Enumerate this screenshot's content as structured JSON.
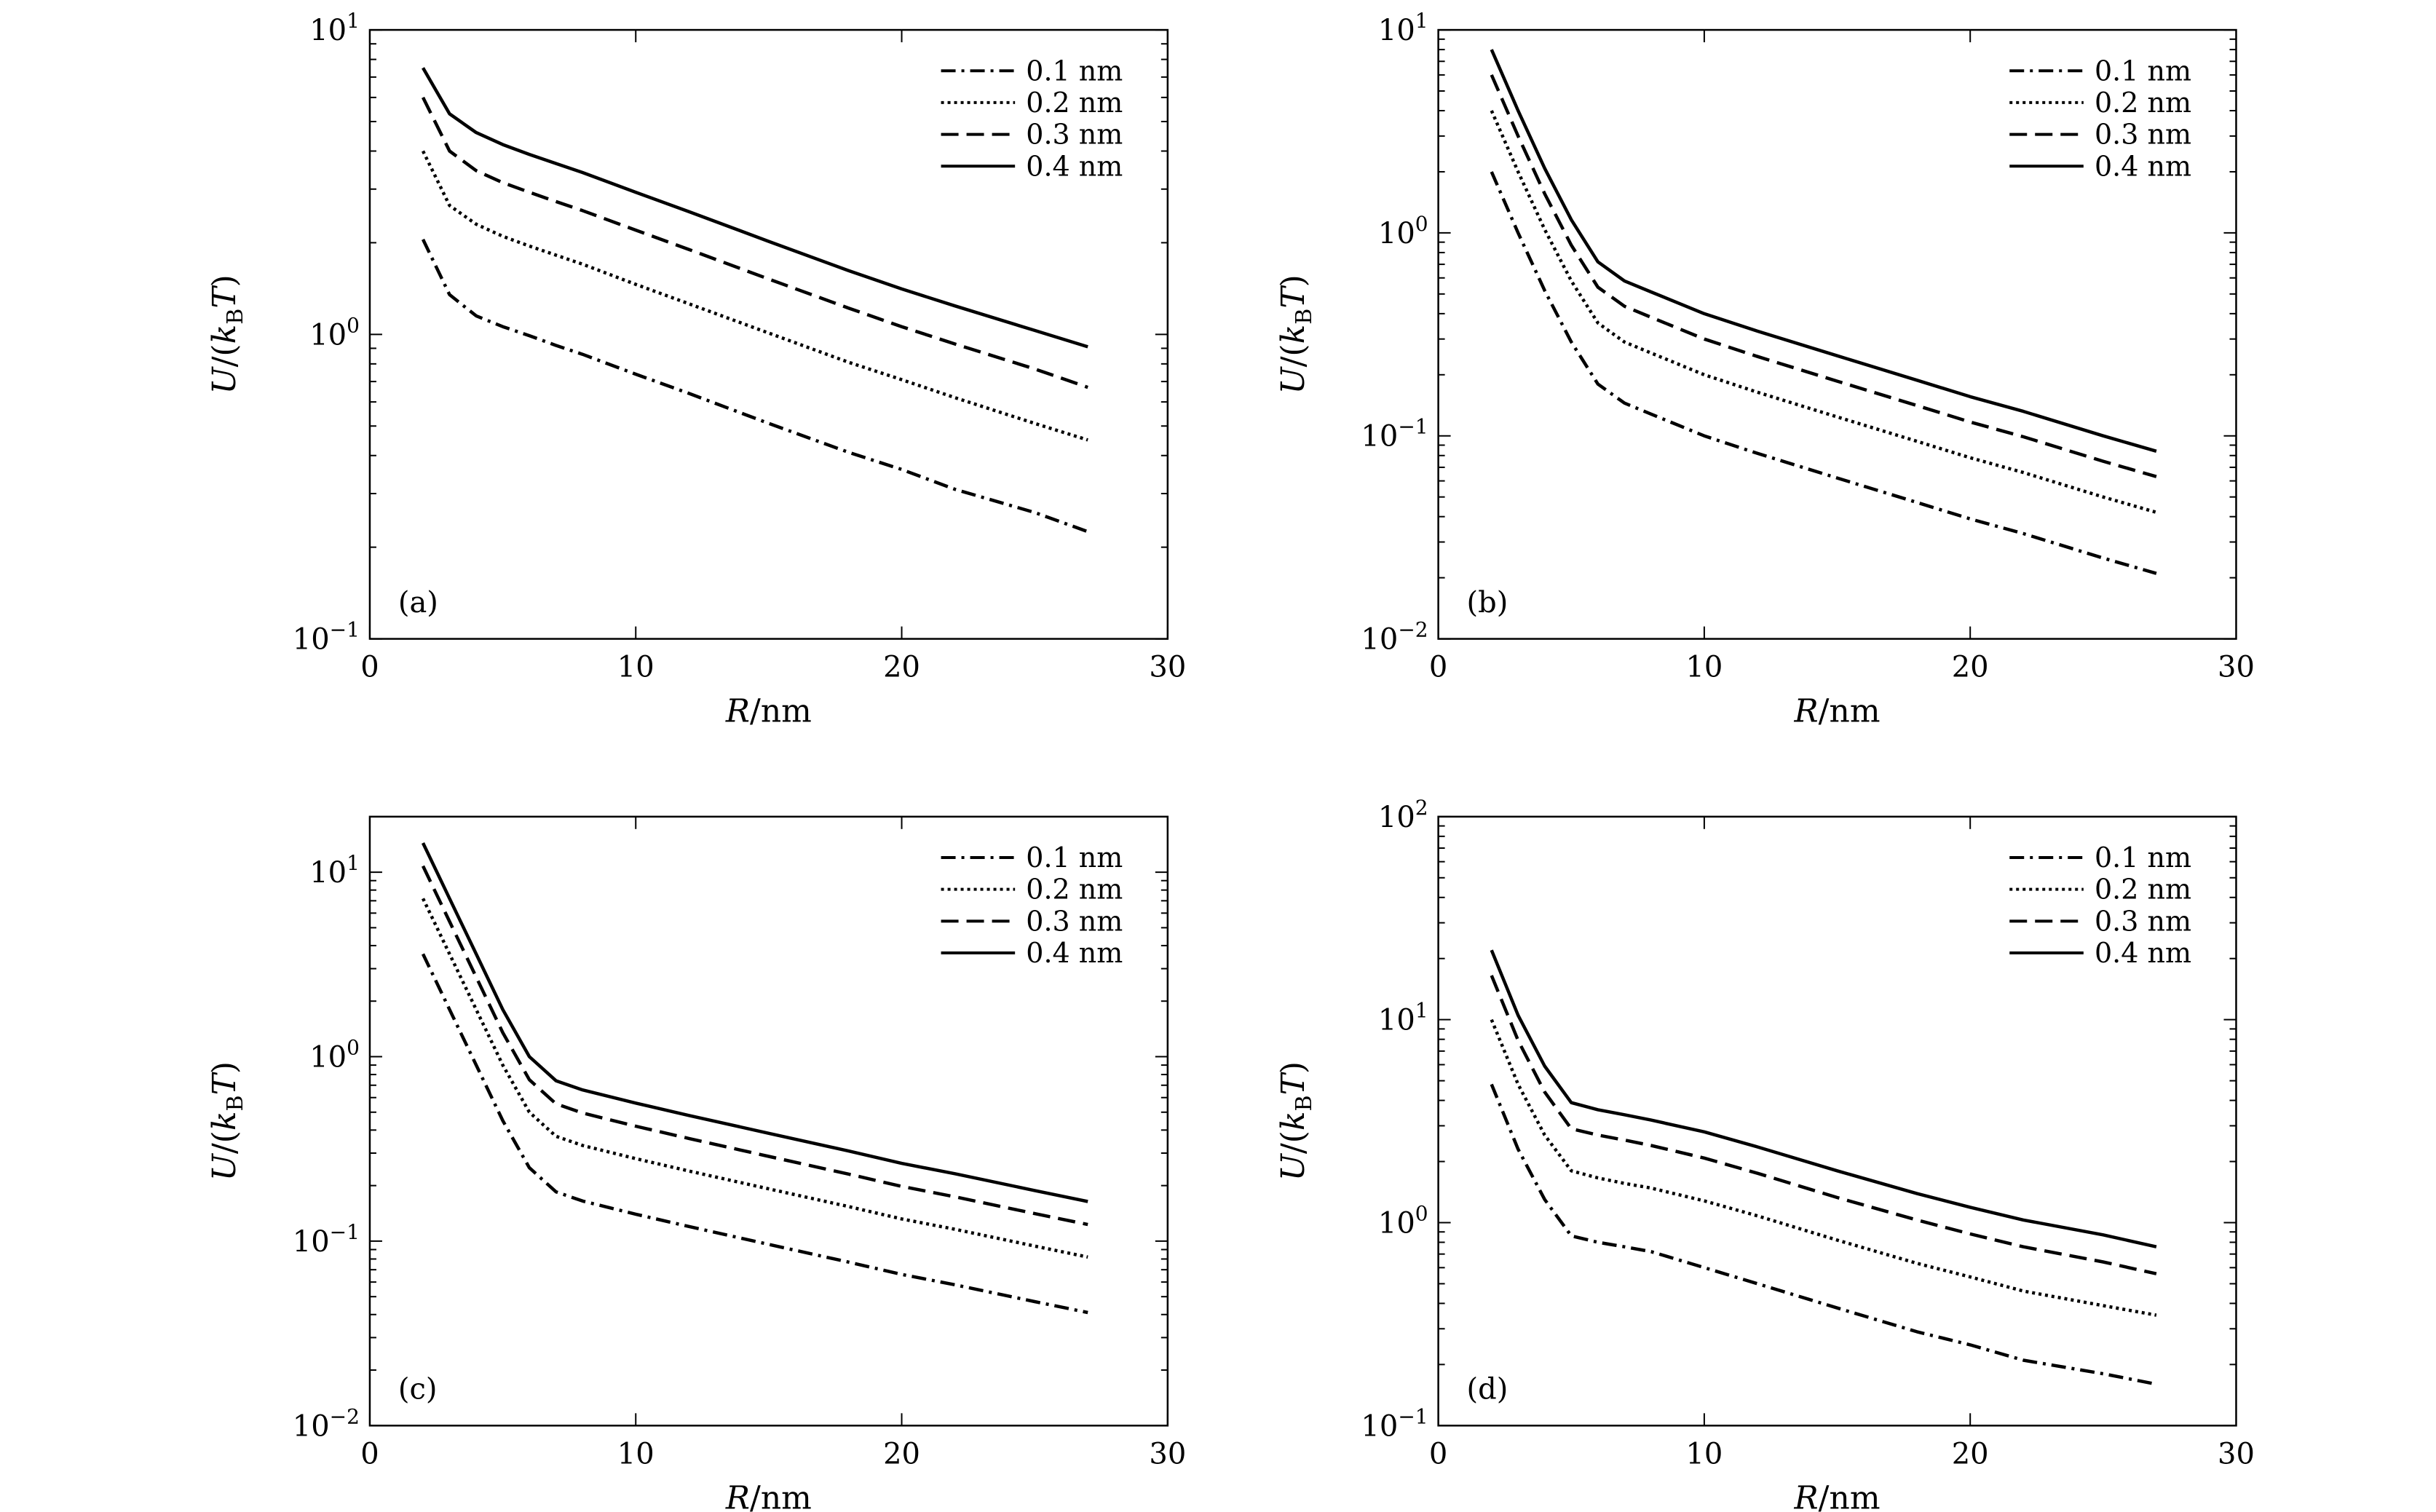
{
  "figure": {
    "ylabel": "U/(k_BT)",
    "xlabel_var": "R",
    "xlabel_unit": "/nm"
  },
  "chart_data": [
    {
      "type": "line",
      "panel": "(a)",
      "xlabel": "R/nm",
      "ylabel": "U/(kBT)",
      "xlim": [
        0,
        30
      ],
      "ylim": [
        0.1,
        10
      ],
      "yscale": "log",
      "xticks": [
        0,
        10,
        20,
        30
      ],
      "yticks": [
        {
          "base": "10",
          "exp": "−1",
          "value": 0.1
        },
        {
          "base": "10",
          "exp": "0",
          "value": 1
        },
        {
          "base": "10",
          "exp": "1",
          "value": 10
        }
      ],
      "legend_position": "top-right",
      "x": [
        2,
        3,
        4,
        5,
        6,
        7,
        8,
        10,
        12,
        15,
        18,
        20,
        22,
        25,
        27
      ],
      "series": [
        {
          "name": "0.1 nm",
          "style": "dashdot",
          "values": [
            2.05,
            1.35,
            1.15,
            1.06,
            0.99,
            0.92,
            0.86,
            0.74,
            0.64,
            0.51,
            0.41,
            0.36,
            0.31,
            0.26,
            0.225
          ]
        },
        {
          "name": "0.2 nm",
          "style": "dotted",
          "values": [
            4.0,
            2.65,
            2.3,
            2.1,
            1.95,
            1.82,
            1.7,
            1.46,
            1.26,
            1.01,
            0.81,
            0.71,
            0.62,
            0.51,
            0.45
          ]
        },
        {
          "name": "0.3 nm",
          "style": "dashed",
          "values": [
            6.0,
            4.0,
            3.45,
            3.15,
            2.93,
            2.73,
            2.55,
            2.2,
            1.9,
            1.52,
            1.22,
            1.06,
            0.93,
            0.77,
            0.67
          ]
        },
        {
          "name": "0.4 nm",
          "style": "solid",
          "values": [
            7.5,
            5.3,
            4.6,
            4.2,
            3.9,
            3.64,
            3.4,
            2.93,
            2.53,
            2.02,
            1.62,
            1.41,
            1.24,
            1.03,
            0.91
          ]
        }
      ]
    },
    {
      "type": "line",
      "panel": "(b)",
      "xlabel": "R/nm",
      "ylabel": "U/(kBT)",
      "xlim": [
        0,
        30
      ],
      "ylim": [
        0.01,
        10
      ],
      "yscale": "log",
      "xticks": [
        0,
        10,
        20,
        30
      ],
      "yticks": [
        {
          "base": "10",
          "exp": "−2",
          "value": 0.01
        },
        {
          "base": "10",
          "exp": "−1",
          "value": 0.1
        },
        {
          "base": "10",
          "exp": "0",
          "value": 1
        },
        {
          "base": "10",
          "exp": "1",
          "value": 10
        }
      ],
      "legend_position": "top-right",
      "x": [
        2,
        3,
        4,
        5,
        6,
        7,
        8,
        10,
        12,
        15,
        18,
        20,
        22,
        25,
        27
      ],
      "series": [
        {
          "name": "0.1 nm",
          "style": "dashdot",
          "values": [
            2.0,
            1.0,
            0.52,
            0.29,
            0.18,
            0.145,
            0.128,
            0.1,
            0.082,
            0.062,
            0.047,
            0.039,
            0.033,
            0.025,
            0.021
          ]
        },
        {
          "name": "0.2 nm",
          "style": "dotted",
          "values": [
            4.0,
            2.0,
            1.04,
            0.58,
            0.36,
            0.29,
            0.256,
            0.2,
            0.164,
            0.124,
            0.094,
            0.078,
            0.066,
            0.05,
            0.042
          ]
        },
        {
          "name": "0.3 nm",
          "style": "dashed",
          "values": [
            6.0,
            3.0,
            1.56,
            0.87,
            0.54,
            0.435,
            0.384,
            0.3,
            0.246,
            0.186,
            0.141,
            0.117,
            0.099,
            0.075,
            0.063
          ]
        },
        {
          "name": "0.4 nm",
          "style": "solid",
          "values": [
            8.0,
            4.0,
            2.08,
            1.16,
            0.72,
            0.58,
            0.512,
            0.4,
            0.328,
            0.248,
            0.188,
            0.156,
            0.132,
            0.1,
            0.084
          ]
        }
      ]
    },
    {
      "type": "line",
      "panel": "(c)",
      "xlabel": "R/nm",
      "ylabel": "U/(kBT)",
      "xlim": [
        0,
        30
      ],
      "ylim": [
        0.01,
        20
      ],
      "yscale": "log",
      "xticks": [
        0,
        10,
        20,
        30
      ],
      "yticks": [
        {
          "base": "10",
          "exp": "−2",
          "value": 0.01
        },
        {
          "base": "10",
          "exp": "−1",
          "value": 0.1
        },
        {
          "base": "10",
          "exp": "0",
          "value": 1
        },
        {
          "base": "10",
          "exp": "1",
          "value": 10
        }
      ],
      "legend_position": "top-right",
      "x": [
        2,
        3,
        4,
        5,
        6,
        7,
        8,
        10,
        12,
        15,
        18,
        20,
        22,
        25,
        27
      ],
      "series": [
        {
          "name": "0.1 nm",
          "style": "dashdot",
          "values": [
            3.6,
            1.8,
            0.9,
            0.45,
            0.25,
            0.185,
            0.165,
            0.14,
            0.12,
            0.096,
            0.077,
            0.066,
            0.058,
            0.047,
            0.041
          ]
        },
        {
          "name": "0.2 nm",
          "style": "dotted",
          "values": [
            7.2,
            3.6,
            1.8,
            0.9,
            0.5,
            0.37,
            0.33,
            0.28,
            0.24,
            0.192,
            0.154,
            0.132,
            0.116,
            0.094,
            0.082
          ]
        },
        {
          "name": "0.3 nm",
          "style": "dashed",
          "values": [
            10.8,
            5.4,
            2.7,
            1.35,
            0.75,
            0.555,
            0.495,
            0.42,
            0.36,
            0.288,
            0.231,
            0.198,
            0.174,
            0.141,
            0.123
          ]
        },
        {
          "name": "0.4 nm",
          "style": "solid",
          "values": [
            14.4,
            7.2,
            3.6,
            1.8,
            1.0,
            0.74,
            0.66,
            0.56,
            0.48,
            0.384,
            0.308,
            0.264,
            0.232,
            0.188,
            0.164
          ]
        }
      ]
    },
    {
      "type": "line",
      "panel": "(d)",
      "xlabel": "R/nm",
      "ylabel": "U/(kBT)",
      "xlim": [
        0,
        30
      ],
      "ylim": [
        0.1,
        100
      ],
      "yscale": "log",
      "xticks": [
        0,
        10,
        20,
        30
      ],
      "yticks": [
        {
          "base": "10",
          "exp": "−1",
          "value": 0.1
        },
        {
          "base": "10",
          "exp": "0",
          "value": 1
        },
        {
          "base": "10",
          "exp": "1",
          "value": 10
        },
        {
          "base": "10",
          "exp": "2",
          "value": 100
        }
      ],
      "legend_position": "top-right",
      "x": [
        2,
        3,
        4,
        5,
        6,
        7,
        8,
        10,
        12,
        15,
        18,
        20,
        22,
        25,
        27
      ],
      "series": [
        {
          "name": "0.1 nm",
          "style": "dashdot",
          "values": [
            4.8,
            2.3,
            1.3,
            0.86,
            0.8,
            0.76,
            0.72,
            0.6,
            0.5,
            0.38,
            0.29,
            0.25,
            0.21,
            0.18,
            0.16
          ]
        },
        {
          "name": "0.2 nm",
          "style": "dotted",
          "values": [
            10.0,
            4.8,
            2.7,
            1.8,
            1.66,
            1.56,
            1.48,
            1.28,
            1.08,
            0.82,
            0.63,
            0.54,
            0.46,
            0.39,
            0.35
          ]
        },
        {
          "name": "0.3 nm",
          "style": "dashed",
          "values": [
            16.5,
            7.9,
            4.4,
            2.9,
            2.7,
            2.55,
            2.4,
            2.08,
            1.75,
            1.33,
            1.03,
            0.88,
            0.76,
            0.64,
            0.56
          ]
        },
        {
          "name": "0.4 nm",
          "style": "solid",
          "values": [
            22.0,
            10.5,
            5.9,
            3.9,
            3.6,
            3.4,
            3.2,
            2.8,
            2.36,
            1.8,
            1.39,
            1.19,
            1.03,
            0.87,
            0.76
          ]
        }
      ]
    }
  ]
}
